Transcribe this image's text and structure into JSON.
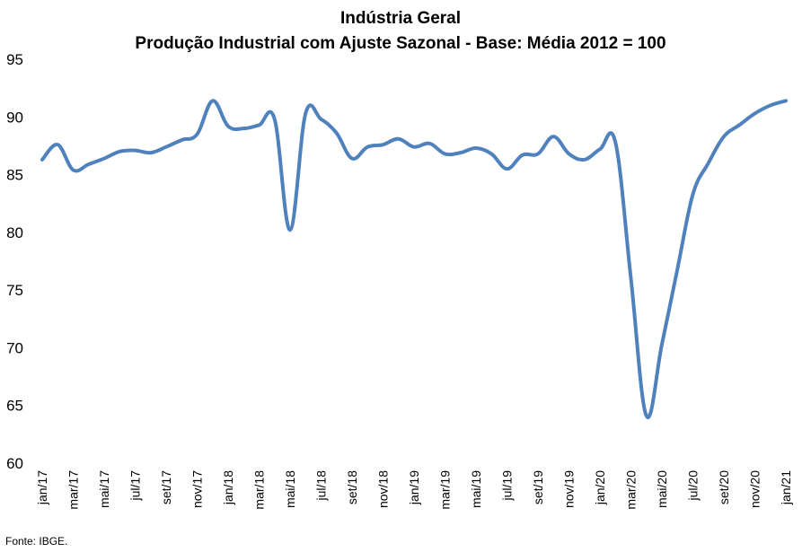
{
  "chart_data": {
    "type": "line",
    "title": "Indústria Geral",
    "subtitle": "Produção Industrial com Ajuste Sazonal - Base: Média 2012 = 100",
    "source": "Fonte: IBGE.",
    "xlabel": "",
    "ylabel": "",
    "ylim": [
      60,
      95
    ],
    "yticks": [
      "95",
      "90",
      "85",
      "80",
      "75",
      "70",
      "65",
      "60"
    ],
    "grid": false,
    "legend": "none",
    "line_color": "#4F81BD",
    "x": [
      "jan/17",
      "fev/17",
      "mar/17",
      "abr/17",
      "mai/17",
      "jun/17",
      "jul/17",
      "ago/17",
      "set/17",
      "out/17",
      "nov/17",
      "dez/17",
      "jan/18",
      "fev/18",
      "mar/18",
      "abr/18",
      "mai/18",
      "jun/18",
      "jul/18",
      "ago/18",
      "set/18",
      "out/18",
      "nov/18",
      "dez/18",
      "jan/19",
      "fev/19",
      "mar/19",
      "abr/19",
      "mai/19",
      "jun/19",
      "jul/19",
      "ago/19",
      "set/19",
      "out/19",
      "nov/19",
      "dez/19",
      "jan/20",
      "fev/20",
      "mar/20",
      "abr/20",
      "mai/20",
      "jun/20",
      "jul/20",
      "ago/20",
      "set/20",
      "out/20",
      "nov/20",
      "dez/20",
      "jan/21"
    ],
    "xtick_labels": [
      "jan/17",
      "mar/17",
      "mai/17",
      "jul/17",
      "set/17",
      "nov/17",
      "jan/18",
      "mar/18",
      "mai/18",
      "jul/18",
      "set/18",
      "nov/18",
      "jan/19",
      "mar/19",
      "mai/19",
      "jul/19",
      "set/19",
      "nov/19",
      "jan/20",
      "mar/20",
      "mai/20",
      "jul/20",
      "set/20",
      "nov/20",
      "jan/21"
    ],
    "series": [
      {
        "name": "",
        "values": [
          86.3,
          87.6,
          85.4,
          85.9,
          86.4,
          87.0,
          87.1,
          86.9,
          87.4,
          88.0,
          88.5,
          91.4,
          89.2,
          89.0,
          89.3,
          89.8,
          80.2,
          90.3,
          89.8,
          88.6,
          86.4,
          87.4,
          87.6,
          88.1,
          87.4,
          87.7,
          86.8,
          86.9,
          87.3,
          86.8,
          85.5,
          86.7,
          86.8,
          88.3,
          86.8,
          86.3,
          87.2,
          87.8,
          76.0,
          64.1,
          70.3,
          76.8,
          83.3,
          86.0,
          88.3,
          89.3,
          90.3,
          91.0,
          91.4
        ]
      }
    ]
  }
}
